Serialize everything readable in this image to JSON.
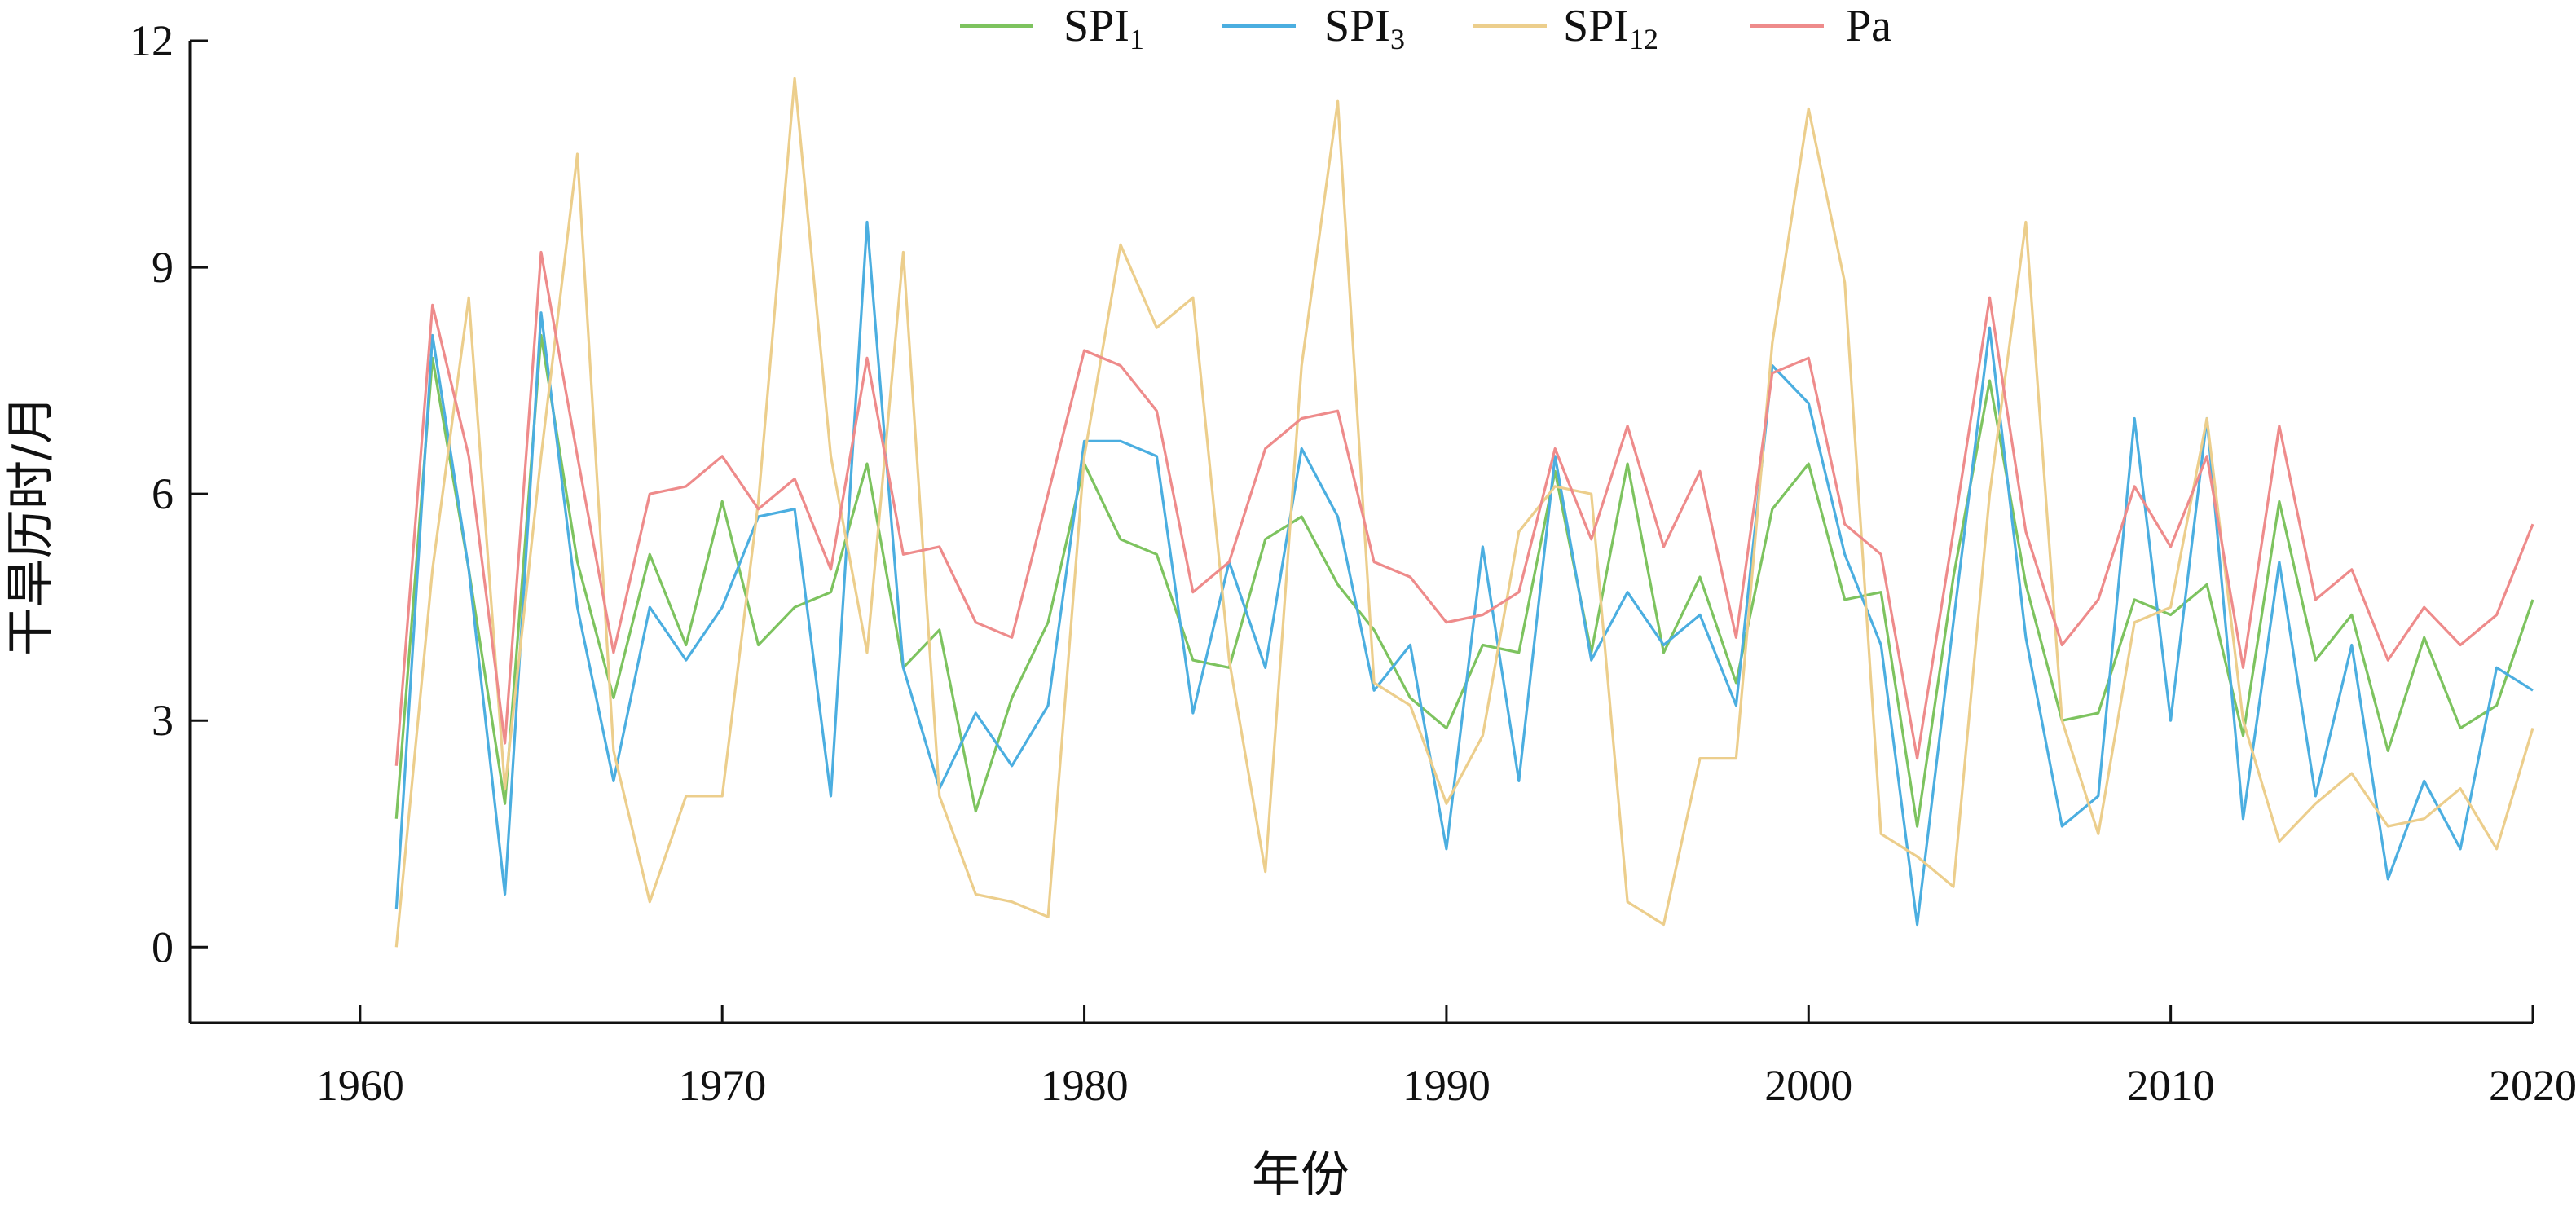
{
  "chart_data": {
    "type": "line",
    "title": "",
    "xlabel": "年份",
    "ylabel": "干旱历时/月",
    "xlim": [
      1955.3,
      2020
    ],
    "ylim": [
      -1,
      12
    ],
    "xticks": [
      1960,
      1970,
      1980,
      1990,
      2000,
      2010,
      2020
    ],
    "yticks": [
      0,
      3,
      6,
      9,
      12
    ],
    "grid": false,
    "legend": "top",
    "x": [
      1961,
      1962,
      1963,
      1964,
      1965,
      1966,
      1967,
      1968,
      1969,
      1970,
      1971,
      1972,
      1973,
      1974,
      1975,
      1976,
      1977,
      1978,
      1979,
      1980,
      1981,
      1982,
      1983,
      1984,
      1985,
      1986,
      1987,
      1988,
      1989,
      1990,
      1991,
      1992,
      1993,
      1994,
      1995,
      1996,
      1997,
      1998,
      1999,
      2000,
      2001,
      2002,
      2003,
      2004,
      2005,
      2006,
      2007,
      2008,
      2009,
      2010,
      2011,
      2012,
      2013,
      2014,
      2015,
      2016,
      2017,
      2018,
      2019,
      2020
    ],
    "series": [
      {
        "name": "SPI",
        "subscript": "1",
        "color": "#7dc35f",
        "values": [
          1.7,
          7.8,
          5.0,
          1.9,
          8.1,
          5.1,
          3.3,
          5.2,
          4.0,
          5.9,
          4.0,
          4.5,
          4.7,
          6.4,
          3.7,
          4.2,
          1.8,
          3.3,
          4.3,
          6.4,
          5.4,
          5.2,
          3.8,
          3.7,
          5.4,
          5.7,
          4.8,
          4.2,
          3.3,
          2.9,
          4.0,
          3.9,
          6.3,
          3.9,
          6.4,
          3.9,
          4.9,
          3.5,
          5.8,
          6.4,
          4.6,
          4.7,
          1.6,
          4.9,
          7.5,
          4.8,
          3.0,
          3.1,
          4.6,
          4.4,
          4.8,
          2.8,
          5.9,
          3.8,
          4.4,
          2.6,
          4.1,
          2.9,
          3.2,
          4.6
        ]
      },
      {
        "name": "SPI",
        "subscript": "3",
        "color": "#4baee0",
        "values": [
          0.5,
          8.1,
          5.0,
          0.7,
          8.4,
          4.5,
          2.2,
          4.5,
          3.8,
          4.5,
          5.7,
          5.8,
          2.0,
          9.6,
          3.7,
          2.1,
          3.1,
          2.4,
          3.2,
          6.7,
          6.7,
          6.5,
          3.1,
          5.1,
          3.7,
          6.6,
          5.7,
          3.4,
          4.0,
          1.3,
          5.3,
          2.2,
          6.5,
          3.8,
          4.7,
          4.0,
          4.4,
          3.2,
          7.7,
          7.2,
          5.2,
          4.0,
          0.3,
          4.3,
          8.2,
          4.1,
          1.6,
          2.0,
          7.0,
          3.0,
          7.0,
          1.7,
          5.1,
          2.0,
          4.0,
          0.9,
          2.2,
          1.3,
          3.7,
          3.4
        ]
      },
      {
        "name": "SPI",
        "subscript": "12",
        "color": "#ecce8c",
        "values": [
          0.0,
          5.0,
          8.6,
          2.1,
          6.5,
          10.5,
          2.6,
          0.6,
          2.0,
          2.0,
          5.9,
          11.5,
          6.5,
          3.9,
          9.2,
          2.0,
          0.7,
          0.6,
          0.4,
          6.5,
          9.3,
          8.2,
          8.6,
          3.8,
          1.0,
          7.7,
          11.2,
          3.5,
          3.2,
          1.9,
          2.8,
          5.5,
          6.1,
          6.0,
          0.6,
          0.3,
          2.5,
          2.5,
          8.0,
          11.1,
          8.8,
          1.5,
          1.2,
          0.8,
          6.0,
          9.6,
          3.0,
          1.5,
          4.3,
          4.5,
          7.0,
          3.0,
          1.4,
          1.9,
          2.3,
          1.6,
          1.7,
          2.1,
          1.3,
          2.9
        ]
      },
      {
        "name": "Pa",
        "subscript": "",
        "color": "#ee8b8b",
        "values": [
          2.4,
          8.5,
          6.5,
          2.7,
          9.2,
          6.5,
          3.9,
          6.0,
          6.1,
          6.5,
          5.8,
          6.2,
          5.0,
          7.8,
          5.2,
          5.3,
          4.3,
          4.1,
          6.0,
          7.9,
          7.7,
          7.1,
          4.7,
          5.1,
          6.6,
          7.0,
          7.1,
          5.1,
          4.9,
          4.3,
          4.4,
          4.7,
          6.6,
          5.4,
          6.9,
          5.3,
          6.3,
          4.1,
          7.6,
          7.8,
          5.6,
          5.2,
          2.5,
          5.5,
          8.6,
          5.5,
          4.0,
          4.6,
          6.1,
          5.3,
          6.5,
          3.7,
          6.9,
          4.6,
          5.0,
          3.8,
          4.5,
          4.0,
          4.4,
          5.6
        ]
      }
    ]
  }
}
